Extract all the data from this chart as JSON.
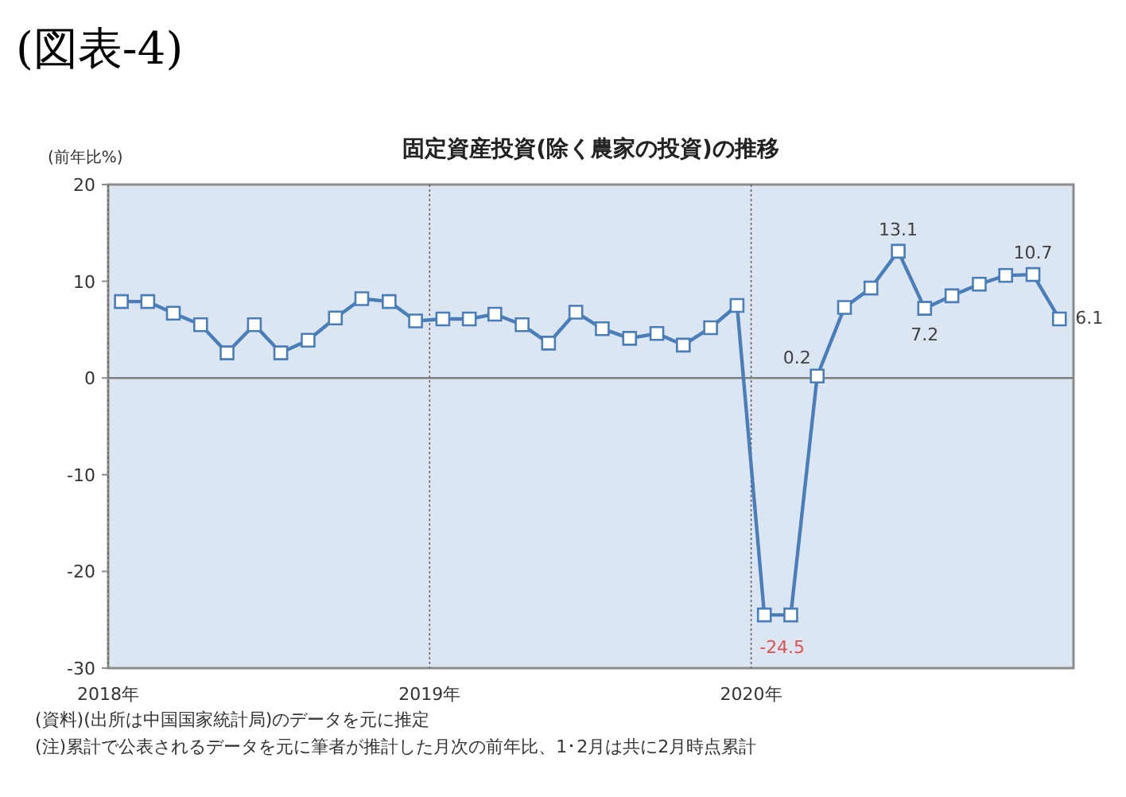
{
  "chart_data": {
    "type": "line",
    "title": "固定資産投資(除く農家の投資)の推移",
    "ylabel": "(前年比%)",
    "annotations": [
      "(図表-4)",
      "(資料)(出所は中国国家統計局)のデータを元に推定",
      "(注)累計で公表されるデータを元に筆者が推計した月次の前年比、1･2月は共に2月時点累計"
    ],
    "x": [
      "2018-01-16",
      "2018-02-15",
      "2018-03-16",
      "2018-04-16",
      "2018-05-16",
      "2018-06-16",
      "2018-07-16",
      "2018-08-16",
      "2018-09-16",
      "2018-10-16",
      "2018-11-16",
      "2018-12-16",
      "2019-01-16",
      "2019-02-15",
      "2019-03-16",
      "2019-04-16",
      "2019-05-16",
      "2019-06-16",
      "2019-07-16",
      "2019-08-16",
      "2019-09-16",
      "2019-10-16",
      "2019-11-16",
      "2019-12-16",
      "2020-01-16",
      "2020-02-15",
      "2020-03-16",
      "2020-04-16",
      "2020-05-16",
      "2020-06-16",
      "2020-07-16",
      "2020-08-16",
      "2020-09-16",
      "2020-10-16",
      "2020-11-16",
      "2020-12-16"
    ],
    "series": [
      {
        "color": "#4a7ebb",
        "values": [
          7.9,
          7.9,
          6.7,
          5.5,
          2.6,
          5.5,
          2.6,
          3.9,
          6.2,
          8.2,
          7.9,
          5.9,
          6.1,
          6.1,
          6.6,
          5.5,
          3.6,
          6.8,
          5.1,
          4.1,
          4.6,
          3.4,
          5.2,
          7.5,
          -24.5,
          -24.5,
          0.2,
          7.3,
          9.3,
          13.1,
          7.2,
          8.5,
          9.7,
          10.6,
          10.7,
          6.1
        ],
        "value_labels": [
          null,
          null,
          null,
          null,
          null,
          null,
          null,
          null,
          null,
          null,
          null,
          null,
          null,
          null,
          null,
          null,
          null,
          null,
          null,
          null,
          null,
          null,
          null,
          null,
          "-24.5",
          null,
          "0.2",
          null,
          null,
          "13.1",
          "7.2",
          null,
          null,
          null,
          "10.7",
          "6.1"
        ]
      }
    ],
    "xlim": [
      "2018-01",
      "2021-01"
    ],
    "xticks": [
      {
        "value": "2018-01",
        "label": "2018年"
      },
      {
        "value": "2019-01",
        "label": "2019年"
      },
      {
        "value": "2020-01",
        "label": "2020年"
      }
    ],
    "ylim": [
      -30,
      20
    ],
    "yticks": [
      -30,
      -20,
      -10,
      0,
      10,
      20
    ],
    "ref_lines": [
      {
        "axis": "y",
        "value": 0,
        "color": "#7f7f7f"
      }
    ],
    "grid": "x",
    "marker": "square",
    "line_style": "solid"
  }
}
